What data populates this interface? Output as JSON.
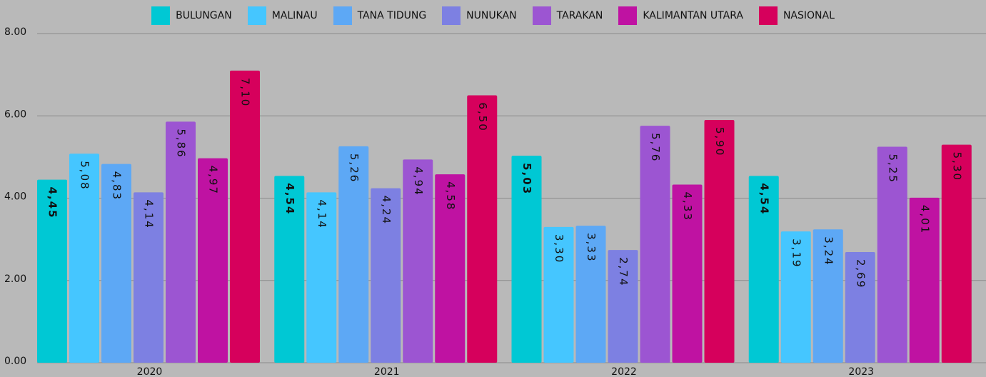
{
  "chart_data": {
    "type": "bar",
    "categories": [
      "2020",
      "2021",
      "2022",
      "2023"
    ],
    "series": [
      {
        "name": "BULUNGAN",
        "color": "#00c8d4",
        "values": [
          4.45,
          4.54,
          5.03,
          4.54
        ],
        "value_labels": [
          "4,45",
          "4,54",
          "5,03",
          "4,54"
        ]
      },
      {
        "name": "MALINAU",
        "color": "#45c6ff",
        "values": [
          5.08,
          4.14,
          3.3,
          3.19
        ],
        "value_labels": [
          "5,08",
          "4,14",
          "3,30",
          "3,19"
        ]
      },
      {
        "name": "TANA TIDUNG",
        "color": "#5da8f5",
        "values": [
          4.83,
          5.26,
          3.33,
          3.24
        ],
        "value_labels": [
          "4,83",
          "5,26",
          "3,33",
          "3,24"
        ]
      },
      {
        "name": "NUNUKAN",
        "color": "#7d80e2",
        "values": [
          4.14,
          4.24,
          2.74,
          2.69
        ],
        "value_labels": [
          "4,14",
          "4,24",
          "2,74",
          "2,69"
        ]
      },
      {
        "name": "TARAKAN",
        "color": "#9c55d2",
        "values": [
          5.86,
          4.94,
          5.76,
          5.25
        ],
        "value_labels": [
          "5,86",
          "4,94",
          "5,76",
          "5,25"
        ]
      },
      {
        "name": "KALIMANTAN UTARA",
        "color": "#bf12a2",
        "values": [
          4.97,
          4.58,
          4.33,
          4.01
        ],
        "value_labels": [
          "4,97",
          "4,58",
          "4,33",
          "4,01"
        ]
      },
      {
        "name": "NASIONAL",
        "color": "#d6005c",
        "values": [
          7.1,
          6.5,
          5.9,
          5.3
        ],
        "value_labels": [
          "7,10",
          "6,50",
          "5,90",
          "5,30"
        ]
      }
    ],
    "ylim": [
      0,
      8
    ],
    "yticks": [
      {
        "value": 0,
        "label": "0.00"
      },
      {
        "value": 2,
        "label": "2.00"
      },
      {
        "value": 4,
        "label": "4.00"
      },
      {
        "value": 6,
        "label": "6.00"
      },
      {
        "value": 8,
        "label": "8.00"
      }
    ],
    "grid": true
  }
}
